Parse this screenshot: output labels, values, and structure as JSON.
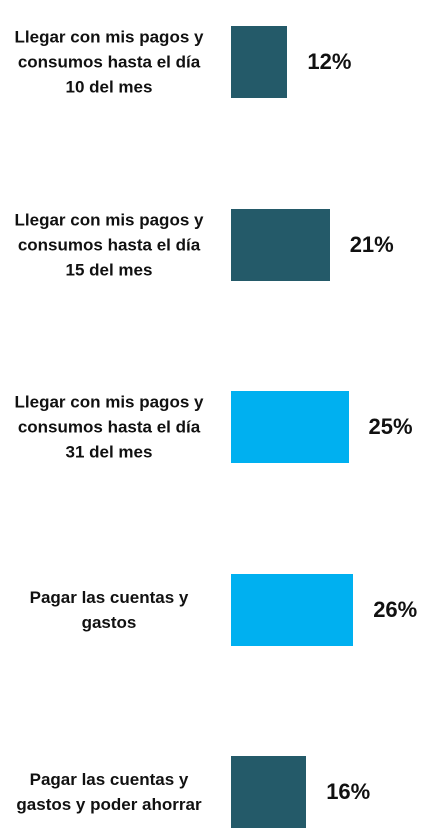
{
  "chart_data": {
    "type": "bar",
    "orientation": "horizontal",
    "categories": [
      "Llegar con mis pagos y consumos hasta el día 10 del mes",
      "Llegar con mis pagos y consumos hasta el día 15 del mes",
      "Llegar con mis pagos y consumos hasta el día 31 del mes",
      "Pagar las cuentas y gastos",
      "Pagar las cuentas y gastos y poder ahorrar"
    ],
    "values": [
      12,
      21,
      25,
      26,
      16
    ],
    "value_labels": [
      "12%",
      "21%",
      "25%",
      "26%",
      "16%"
    ],
    "colors": [
      "#245a69",
      "#245a69",
      "#00b0f0",
      "#00b0f0",
      "#245a69"
    ]
  }
}
